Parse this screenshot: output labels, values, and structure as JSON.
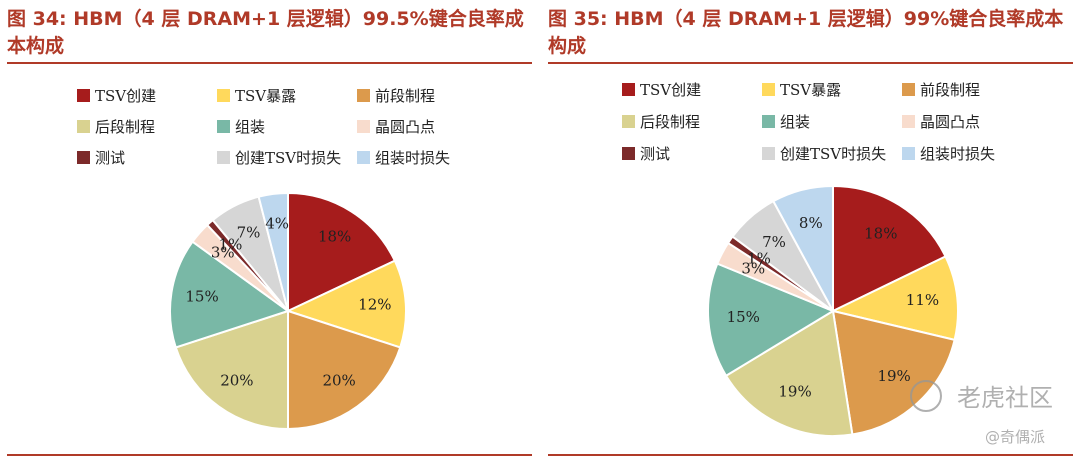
{
  "watermark": {
    "main": "老虎社区",
    "sub": "@奇偶派"
  },
  "legend_colors": {
    "TSV创建": "#a61c1c",
    "TSV暴露": "#ffd95c",
    "前段制程": "#dc9a4c",
    "后段制程": "#d9d290",
    "组装": "#79b8a6",
    "晶圆凸点": "#f8dccd",
    "测试": "#7c2a2a",
    "创建TSV时损失": "#d6d6d6",
    "组装时损失": "#bdd7ee"
  },
  "chart_data": [
    {
      "type": "pie",
      "title": "图 34:  HBM（4 层 DRAM+1 层逻辑）99.5%键合良率成本构成",
      "legend": [
        "TSV创建",
        "TSV暴露",
        "前段制程",
        "后段制程",
        "组装",
        "晶圆凸点",
        "测试",
        "创建TSV时损失",
        "组装时损失"
      ],
      "legend_position": "top",
      "series": [
        {
          "label": "TSV创建",
          "value": 18,
          "display": "18%"
        },
        {
          "label": "TSV暴露",
          "value": 12,
          "display": "12%"
        },
        {
          "label": "前段制程",
          "value": 20,
          "display": "20%"
        },
        {
          "label": "后段制程",
          "value": 20,
          "display": "20%"
        },
        {
          "label": "组装",
          "value": 15,
          "display": "15%"
        },
        {
          "label": "晶圆凸点",
          "value": 3,
          "display": "3%"
        },
        {
          "label": "测试",
          "value": 1,
          "display": "1%"
        },
        {
          "label": "创建TSV时损失",
          "value": 7,
          "display": "7%"
        },
        {
          "label": "组装时损失",
          "value": 4,
          "display": "4%"
        }
      ]
    },
    {
      "type": "pie",
      "title": "图 35:  HBM（4 层 DRAM+1 层逻辑）99%键合良率成本构成",
      "legend": [
        "TSV创建",
        "TSV暴露",
        "前段制程",
        "后段制程",
        "组装",
        "晶圆凸点",
        "测试",
        "创建TSV时损失",
        "组装时损失"
      ],
      "legend_position": "top",
      "series": [
        {
          "label": "TSV创建",
          "value": 18,
          "display": "18%"
        },
        {
          "label": "TSV暴露",
          "value": 11,
          "display": "11%"
        },
        {
          "label": "前段制程",
          "value": 19,
          "display": "19%"
        },
        {
          "label": "后段制程",
          "value": 19,
          "display": "19%"
        },
        {
          "label": "组装",
          "value": 15,
          "display": "15%"
        },
        {
          "label": "晶圆凸点",
          "value": 3,
          "display": "3%"
        },
        {
          "label": "测试",
          "value": 1,
          "display": "1%"
        },
        {
          "label": "创建TSV时损失",
          "value": 7,
          "display": "7%"
        },
        {
          "label": "组装时损失",
          "value": 8,
          "display": "8%"
        }
      ]
    }
  ]
}
